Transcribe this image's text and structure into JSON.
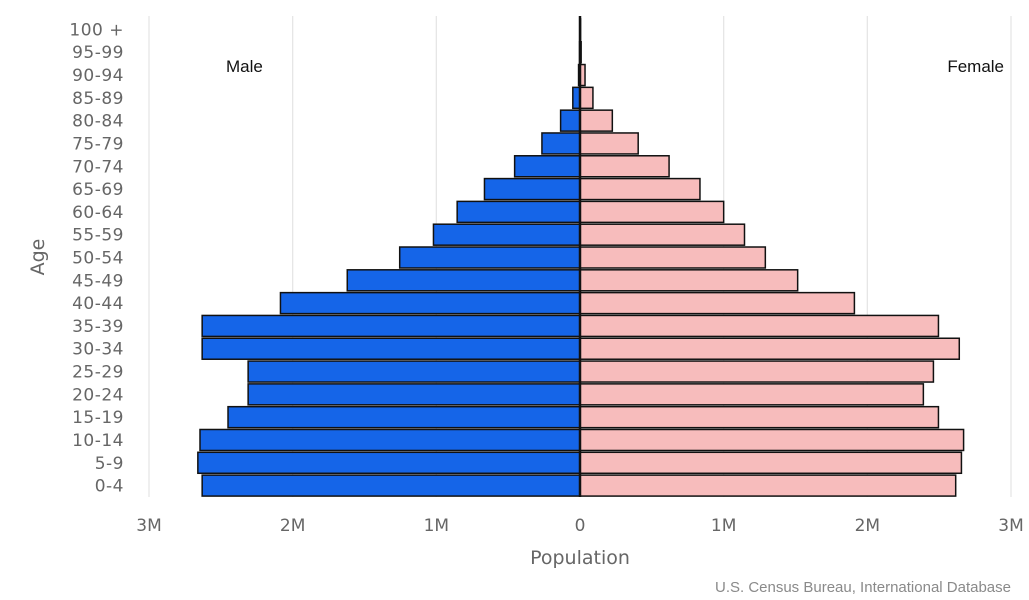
{
  "chart_data": {
    "type": "bar",
    "orientation": "horizontal",
    "subtype": "population-pyramid",
    "categories": [
      "0-4",
      "5-9",
      "10-14",
      "15-19",
      "20-24",
      "25-29",
      "30-34",
      "35-39",
      "40-44",
      "45-49",
      "50-54",
      "55-59",
      "60-64",
      "65-69",
      "70-74",
      "75-79",
      "80-84",
      "85-89",
      "90-94",
      "95-99",
      "100 +"
    ],
    "series": [
      {
        "name": "Male",
        "color": "#1565e8",
        "values": [
          2630000,
          2660000,
          2645000,
          2450000,
          2310000,
          2310000,
          2630000,
          2630000,
          2085000,
          1620000,
          1255000,
          1020000,
          855000,
          665000,
          455000,
          265000,
          135000,
          50000,
          10000,
          3000,
          1000
        ]
      },
      {
        "name": "Female",
        "color": "#f7bcbc",
        "values": [
          2615000,
          2655000,
          2670000,
          2495000,
          2390000,
          2460000,
          2640000,
          2495000,
          1910000,
          1515000,
          1290000,
          1145000,
          1000000,
          835000,
          620000,
          405000,
          225000,
          90000,
          35000,
          8000,
          2000
        ]
      }
    ],
    "xlim": [
      -3000000,
      3000000
    ],
    "xticks": [
      -3000000,
      -2000000,
      -1000000,
      0,
      1000000,
      2000000,
      3000000
    ],
    "xtick_labels": [
      "3M",
      "2M",
      "1M",
      "0",
      "1M",
      "2M",
      "3M"
    ],
    "xlabel": "Population",
    "ylabel": "Age",
    "grid": true,
    "annotations": {
      "male_label": "Male",
      "female_label": "Female"
    },
    "credit": "U.S. Census Bureau, International Database"
  }
}
